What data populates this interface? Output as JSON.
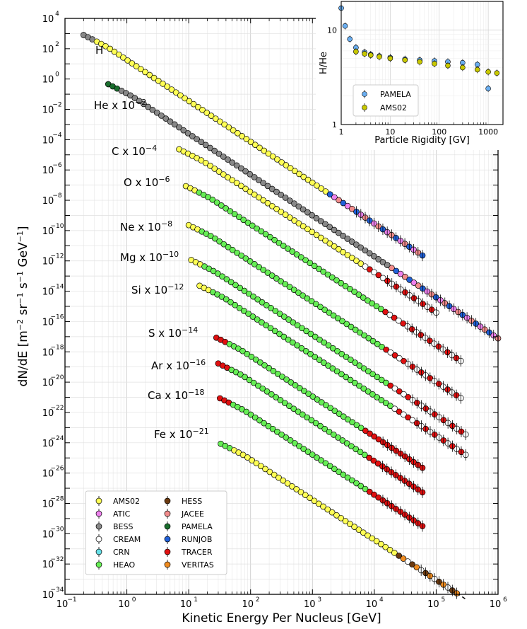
{
  "chart_data": [
    {
      "type": "scatter",
      "xlabel": "Kinetic Energy Per Nucleus [GeV]",
      "ylabel": "dN/dE [m^-2 sr^-1 s^-1 GeV^-1]",
      "xscale": "log",
      "yscale": "log",
      "xlim": [
        0.1,
        1000000
      ],
      "ylim": [
        1e-34,
        10000
      ],
      "grid": true,
      "legend_position": "lower-left",
      "experiments": [
        {
          "name": "AMS02",
          "color": "#ffff55"
        },
        {
          "name": "ATIC",
          "color": "#ee82ee"
        },
        {
          "name": "BESS",
          "color": "#888888"
        },
        {
          "name": "CREAM",
          "color": "#ffffff"
        },
        {
          "name": "CRN",
          "color": "#66e0e8"
        },
        {
          "name": "HEAO",
          "color": "#66ee55"
        },
        {
          "name": "HESS",
          "color": "#6b3a10"
        },
        {
          "name": "JACEE",
          "color": "#f28c8c"
        },
        {
          "name": "PAMELA",
          "color": "#1a6e2e"
        },
        {
          "name": "RUNJOB",
          "color": "#2060d8"
        },
        {
          "name": "TRACER",
          "color": "#e01010"
        },
        {
          "name": "VERITAS",
          "color": "#f08c20"
        }
      ],
      "species": [
        {
          "name": "H",
          "label_base": "H",
          "label_exp": "",
          "gamma": 2.7,
          "e_start": 0.2,
          "e_end": 60000,
          "start_value": 1400,
          "start_experiment": "BESS",
          "main_experiment": "AMS02",
          "high_energy_experiments": [
            "ATIC",
            "JACEE",
            "RUNJOB"
          ]
        },
        {
          "name": "He",
          "label_base": "He x 10",
          "label_exp": "−2",
          "gamma": 2.7,
          "e_start": 0.5,
          "e_end": 1000000,
          "start_value": 0.8,
          "start_experiment": "PAMELA",
          "main_experiment": "BESS",
          "high_energy_experiments": [
            "ATIC",
            "JACEE",
            "RUNJOB"
          ]
        },
        {
          "name": "C",
          "label_base": "C x 10",
          "label_exp": "−4",
          "gamma": 2.65,
          "e_start": 7,
          "e_end": 100000,
          "start_value": 4e-05,
          "start_experiment": "AMS02",
          "main_experiment": "AMS02",
          "high_energy_experiments": [
            "CREAM",
            "TRACER"
          ]
        },
        {
          "name": "O",
          "label_base": "O x 10",
          "label_exp": "−6",
          "gamma": 2.65,
          "e_start": 9,
          "e_end": 250000,
          "start_value": 1.5e-07,
          "start_experiment": "AMS02",
          "main_experiment": "HEAO",
          "high_energy_experiments": [
            "CREAM",
            "TRACER"
          ]
        },
        {
          "name": "Ne",
          "label_base": "Ne x 10",
          "label_exp": "−8",
          "gamma": 2.65,
          "e_start": 10,
          "e_end": 250000,
          "start_value": 4e-10,
          "start_experiment": "AMS02",
          "main_experiment": "HEAO",
          "high_energy_experiments": [
            "CREAM",
            "TRACER"
          ]
        },
        {
          "name": "Mg",
          "label_base": "Mg x 10",
          "label_exp": "−10",
          "gamma": 2.65,
          "e_start": 11,
          "e_end": 300000,
          "start_value": 2e-12,
          "start_experiment": "AMS02",
          "main_experiment": "HEAO",
          "high_energy_experiments": [
            "CREAM",
            "TRACER"
          ]
        },
        {
          "name": "Si",
          "label_base": "Si x 10",
          "label_exp": "−12",
          "gamma": 2.65,
          "e_start": 15,
          "e_end": 300000,
          "start_value": 4e-14,
          "start_experiment": "AMS02",
          "main_experiment": "HEAO",
          "high_energy_experiments": [
            "CREAM",
            "TRACER"
          ]
        },
        {
          "name": "S",
          "label_base": "S x 10",
          "label_exp": "−14",
          "gamma": 2.65,
          "e_start": 28,
          "e_end": 60000,
          "start_value": 1.5e-17,
          "start_experiment": "TRACER",
          "main_experiment": "HEAO",
          "high_energy_experiments": [
            "TRACER"
          ]
        },
        {
          "name": "Ar",
          "label_base": "Ar x 10",
          "label_exp": "−16",
          "gamma": 2.65,
          "e_start": 30,
          "e_end": 60000,
          "start_value": 3e-19,
          "start_experiment": "TRACER",
          "main_experiment": "HEAO",
          "high_energy_experiments": [
            "TRACER"
          ]
        },
        {
          "name": "Ca",
          "label_base": "Ca x 10",
          "label_exp": "−18",
          "gamma": 2.65,
          "e_start": 32,
          "e_end": 60000,
          "start_value": 1.5e-21,
          "start_experiment": "TRACER",
          "main_experiment": "HEAO",
          "high_energy_experiments": [
            "TRACER"
          ]
        },
        {
          "name": "Fe",
          "label_base": "Fe x 10",
          "label_exp": "−21",
          "gamma": 2.65,
          "e_start": 33,
          "e_end": 300000,
          "start_value": 1.5e-24,
          "start_experiment": "HEAO",
          "main_experiment": "AMS02",
          "high_energy_experiments": [
            "CREAM",
            "HESS",
            "VERITAS"
          ]
        }
      ]
    },
    {
      "type": "scatter",
      "xlabel": "Particle Rigidity [GV]",
      "ylabel": "H/He",
      "xscale": "log",
      "yscale": "log",
      "xlim": [
        1,
        2000
      ],
      "ylim": [
        1,
        20
      ],
      "grid": true,
      "legend_position": "lower-left",
      "series": [
        {
          "name": "PAMELA",
          "color": "#6aaef0",
          "x": [
            1.0,
            1.2,
            1.5,
            2,
            3,
            4,
            6,
            10,
            20,
            40,
            80,
            150,
            300,
            600,
            1000
          ],
          "y": [
            17,
            11,
            8,
            6.5,
            5.8,
            5.5,
            5.3,
            5.1,
            4.9,
            4.8,
            4.7,
            4.6,
            4.5,
            4.3,
            2.4
          ]
        },
        {
          "name": "AMS02",
          "color": "#c8c800",
          "x": [
            2,
            3,
            4,
            6,
            10,
            20,
            40,
            80,
            150,
            300,
            600,
            1000,
            1500
          ],
          "y": [
            5.9,
            5.6,
            5.4,
            5.2,
            5.0,
            4.8,
            4.6,
            4.4,
            4.2,
            4.0,
            3.8,
            3.6,
            3.5
          ]
        }
      ],
      "legend": [
        "PAMELA",
        "AMS02"
      ]
    }
  ]
}
